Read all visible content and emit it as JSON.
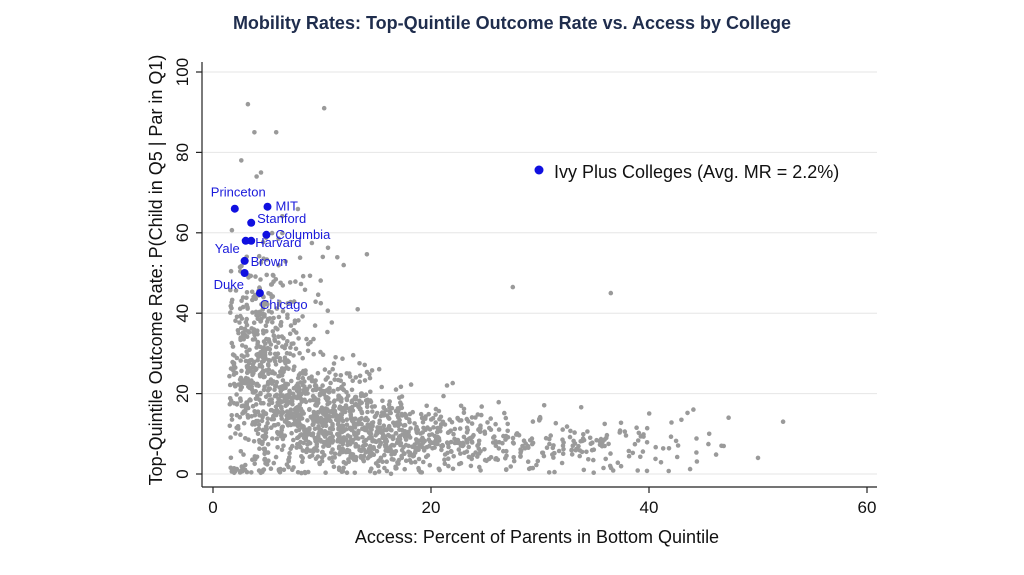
{
  "chart_data": {
    "type": "scatter",
    "title": "Mobility Rates: Top-Quintile Outcome Rate vs. Access by College",
    "xlabel": "Access: Percent of Parents in Bottom Quintile",
    "ylabel": "Top-Quintile Outcome Rate: P(Child in Q5 | Par in Q1)",
    "xlim": [
      -1,
      61
    ],
    "ylim": [
      -1,
      102
    ],
    "xticks": [
      0,
      20,
      40,
      60
    ],
    "yticks": [
      0,
      20,
      40,
      60,
      80,
      100
    ],
    "grid": "horizontal",
    "legend": {
      "placement": "top-right",
      "entries": [
        "Ivy Plus Colleges (Avg. MR = 2.2%)"
      ]
    },
    "colors": {
      "background_points": "#9a9a9a",
      "highlight": "#1010e0",
      "title": "#1f2d4d"
    },
    "series": [
      {
        "name": "Ivy Plus Colleges (Avg. MR = 2.2%)",
        "points": [
          {
            "label": "Princeton",
            "x": 2.0,
            "y": 66
          },
          {
            "label": "MIT",
            "x": 5.0,
            "y": 66.5
          },
          {
            "label": "Stanford",
            "x": 3.5,
            "y": 62.5
          },
          {
            "label": "Columbia",
            "x": 4.9,
            "y": 59.5
          },
          {
            "label": "Harvard",
            "x": 3.5,
            "y": 58
          },
          {
            "label": "Yale",
            "x": 3.0,
            "y": 58
          },
          {
            "label": "Brown",
            "x": 2.9,
            "y": 53
          },
          {
            "label": "Duke",
            "x": 2.9,
            "y": 50
          },
          {
            "label": "Chicago",
            "x": 4.3,
            "y": 45
          }
        ]
      }
    ],
    "background_cloud": {
      "description_points": [
        {
          "x": 3.2,
          "y": 92
        },
        {
          "x": 10.2,
          "y": 91
        },
        {
          "x": 3.8,
          "y": 85
        },
        {
          "x": 5.8,
          "y": 85
        },
        {
          "x": 2.6,
          "y": 78
        },
        {
          "x": 4.4,
          "y": 75
        },
        {
          "x": 4.0,
          "y": 74
        },
        {
          "x": 36.5,
          "y": 45
        },
        {
          "x": 27.5,
          "y": 46.5
        },
        {
          "x": 52.3,
          "y": 13
        },
        {
          "x": 50.0,
          "y": 4
        },
        {
          "x": 47.3,
          "y": 14
        }
      ],
      "density_clusters": [
        {
          "cx": 4.5,
          "cy": 30,
          "sx": 1.6,
          "sy": 10,
          "n": 380
        },
        {
          "cx": 9,
          "cy": 15,
          "sx": 3.5,
          "sy": 6,
          "n": 650
        },
        {
          "cx": 16,
          "cy": 9,
          "sx": 4.5,
          "sy": 4,
          "n": 420
        },
        {
          "cx": 26,
          "cy": 7,
          "sx": 7,
          "sy": 4,
          "n": 220
        },
        {
          "cx": 38,
          "cy": 6,
          "sx": 6,
          "sy": 4,
          "n": 70
        },
        {
          "cx": 7,
          "cy": 45,
          "sx": 3,
          "sy": 8,
          "n": 60
        },
        {
          "cx": 3.5,
          "cy": 1,
          "sx": 4,
          "sy": 0.6,
          "n": 40
        }
      ]
    }
  }
}
